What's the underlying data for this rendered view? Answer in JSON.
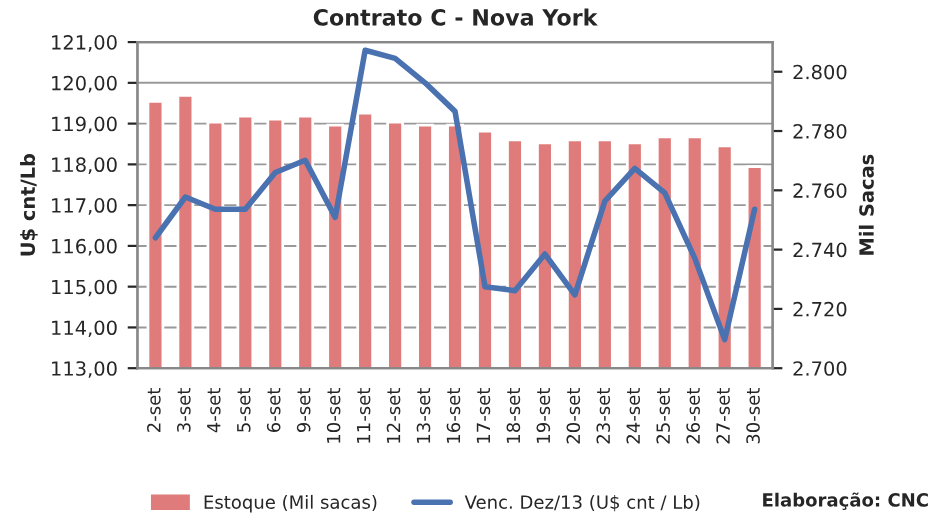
{
  "chart_data": {
    "type": "bar",
    "title": "Contrato C - Nova York",
    "ylabel": "U$ cnt/Lb",
    "y2label": "Mil Sacas",
    "categories": [
      "2-set",
      "3-set",
      "4-set",
      "5-set",
      "6-set",
      "9-set",
      "10-set",
      "11-set",
      "12-set",
      "13-set",
      "16-set",
      "17-set",
      "18-set",
      "19-set",
      "20-set",
      "23-set",
      "24-set",
      "25-set",
      "26-set",
      "27-set",
      "30-set"
    ],
    "series": [
      {
        "name": "Estoque (Mil sacas)",
        "axis": "y2",
        "color": "#e07b7b",
        "values": [
          2790,
          2792,
          2783,
          2785,
          2784,
          2785,
          2782,
          2786,
          2783,
          2782,
          2782,
          2780,
          2777,
          2776,
          2777,
          2777,
          2776,
          2778,
          2778,
          2775,
          2768
        ]
      },
      {
        "name": "Venc. Dez/13 (U$ cnt / Lb)",
        "type": "line",
        "axis": "y",
        "color": "#4a72b0",
        "values": [
          116.2,
          117.2,
          116.9,
          116.9,
          117.8,
          118.1,
          116.7,
          120.8,
          120.6,
          120.0,
          119.3,
          115.0,
          114.9,
          115.8,
          114.8,
          117.1,
          117.9,
          117.3,
          115.7,
          113.7,
          116.9
        ]
      }
    ],
    "ylim": [
      113,
      121
    ],
    "yticks": [
      {
        "value": 113,
        "label": "113,00"
      },
      {
        "value": 114,
        "label": "114,00"
      },
      {
        "value": 115,
        "label": "115,00"
      },
      {
        "value": 116,
        "label": "116,00"
      },
      {
        "value": 117,
        "label": "117,00"
      },
      {
        "value": 118,
        "label": "118,00"
      },
      {
        "value": 119,
        "label": "119,00"
      },
      {
        "value": 120,
        "label": "120,00"
      },
      {
        "value": 121,
        "label": "121,00"
      }
    ],
    "y2lim": [
      2700,
      2810
    ],
    "y2ticks": [
      {
        "value": 2700,
        "label": "2.700"
      },
      {
        "value": 2720,
        "label": "2.720"
      },
      {
        "value": 2740,
        "label": "2.740"
      },
      {
        "value": 2760,
        "label": "2.760"
      },
      {
        "value": 2780,
        "label": "2.780"
      },
      {
        "value": 2800,
        "label": "2.800"
      }
    ],
    "grid": "y",
    "legend": "bottom",
    "annotations": [
      "Elaboração: CNC"
    ]
  }
}
